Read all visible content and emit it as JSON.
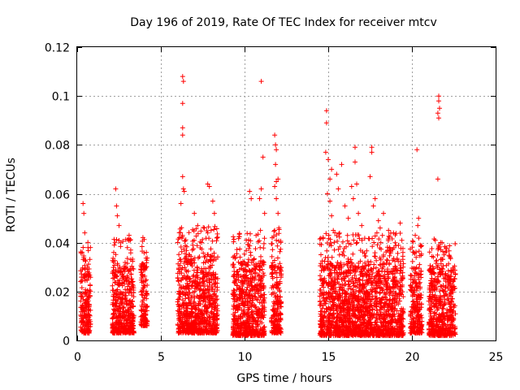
{
  "chart_data": {
    "type": "scatter",
    "title": "Day 196 of 2019, Rate Of TEC Index for receiver mtcv",
    "xlabel": "GPS time / hours",
    "ylabel": "ROTI / TECUs",
    "xlim": [
      0,
      25
    ],
    "ylim": [
      0,
      0.12
    ],
    "xticks": [
      0,
      5,
      10,
      15,
      20,
      25
    ],
    "xtick_labels": [
      "0",
      "5",
      "10",
      "15",
      "20",
      "25"
    ],
    "yticks": [
      0,
      0.02,
      0.04,
      0.06,
      0.08,
      0.1,
      0.12
    ],
    "ytick_labels": [
      "0",
      "0.02",
      "0.04",
      "0.06",
      "0.08",
      "0.1",
      "0.12"
    ],
    "grid": true,
    "marker": "+",
    "color": "#ff0000",
    "clusters": [
      {
        "x_range": [
          0.2,
          0.8
        ],
        "y_base": [
          0.003,
          0.03
        ],
        "spikes": [
          [
            0.35,
            0.056
          ],
          [
            0.4,
            0.052
          ],
          [
            0.45,
            0.044
          ],
          [
            0.3,
            0.036
          ]
        ]
      },
      {
        "x_range": [
          2.1,
          3.4
        ],
        "y_base": [
          0.003,
          0.03
        ],
        "spikes": [
          [
            2.3,
            0.062
          ],
          [
            2.35,
            0.055
          ],
          [
            2.4,
            0.051
          ],
          [
            2.5,
            0.047
          ],
          [
            2.6,
            0.04
          ],
          [
            3.1,
            0.043
          ],
          [
            3.2,
            0.037
          ],
          [
            3.0,
            0.038
          ]
        ]
      },
      {
        "x_range": [
          3.8,
          4.2
        ],
        "y_base": [
          0.006,
          0.032
        ],
        "spikes": [
          [
            4.0,
            0.03
          ]
        ]
      },
      {
        "x_range": [
          6.0,
          8.4
        ],
        "y_base": [
          0.003,
          0.035
        ],
        "spikes": [
          [
            6.3,
            0.108
          ],
          [
            6.35,
            0.106
          ],
          [
            6.3,
            0.097
          ],
          [
            6.3,
            0.087
          ],
          [
            6.3,
            0.084
          ],
          [
            6.3,
            0.067
          ],
          [
            6.35,
            0.062
          ],
          [
            6.4,
            0.061
          ],
          [
            6.2,
            0.056
          ],
          [
            7.0,
            0.052
          ],
          [
            7.2,
            0.047
          ],
          [
            7.8,
            0.064
          ],
          [
            7.9,
            0.063
          ],
          [
            8.1,
            0.057
          ],
          [
            8.2,
            0.052
          ],
          [
            7.6,
            0.046
          ],
          [
            8.0,
            0.045
          ]
        ]
      },
      {
        "x_range": [
          9.3,
          11.2
        ],
        "y_base": [
          0.002,
          0.032
        ],
        "spikes": [
          [
            10.3,
            0.061
          ],
          [
            10.4,
            0.058
          ],
          [
            10.1,
            0.041
          ],
          [
            11.0,
            0.106
          ],
          [
            11.1,
            0.075
          ],
          [
            11.0,
            0.062
          ],
          [
            10.9,
            0.058
          ],
          [
            11.2,
            0.052
          ],
          [
            10.95,
            0.045
          ]
        ]
      },
      {
        "x_range": [
          11.6,
          12.2
        ],
        "y_base": [
          0.003,
          0.035
        ],
        "spikes": [
          [
            11.8,
            0.084
          ],
          [
            11.85,
            0.08
          ],
          [
            11.9,
            0.078
          ],
          [
            11.85,
            0.072
          ],
          [
            12.0,
            0.066
          ],
          [
            11.9,
            0.065
          ],
          [
            11.8,
            0.063
          ],
          [
            11.9,
            0.058
          ],
          [
            12.0,
            0.052
          ],
          [
            11.8,
            0.045
          ],
          [
            11.9,
            0.041
          ],
          [
            12.05,
            0.046
          ]
        ]
      },
      {
        "x_range": [
          14.5,
          19.5
        ],
        "y_base": [
          0.002,
          0.032
        ],
        "spikes": [
          [
            14.9,
            0.094
          ],
          [
            14.9,
            0.089
          ],
          [
            14.85,
            0.077
          ],
          [
            15.0,
            0.074
          ],
          [
            15.2,
            0.07
          ],
          [
            15.1,
            0.066
          ],
          [
            14.95,
            0.06
          ],
          [
            15.1,
            0.057
          ],
          [
            15.2,
            0.051
          ],
          [
            15.3,
            0.045
          ],
          [
            15.4,
            0.044
          ],
          [
            15.5,
            0.068
          ],
          [
            15.6,
            0.062
          ],
          [
            15.8,
            0.072
          ],
          [
            16.0,
            0.055
          ],
          [
            16.2,
            0.05
          ],
          [
            16.4,
            0.063
          ],
          [
            16.6,
            0.079
          ],
          [
            16.6,
            0.073
          ],
          [
            16.7,
            0.064
          ],
          [
            16.5,
            0.058
          ],
          [
            16.8,
            0.052
          ],
          [
            17.0,
            0.047
          ],
          [
            17.6,
            0.079
          ],
          [
            17.6,
            0.077
          ],
          [
            17.5,
            0.067
          ],
          [
            17.8,
            0.058
          ],
          [
            17.7,
            0.055
          ],
          [
            18.0,
            0.049
          ],
          [
            18.1,
            0.046
          ],
          [
            18.3,
            0.052
          ],
          [
            18.6,
            0.045
          ],
          [
            18.9,
            0.044
          ],
          [
            19.0,
            0.04
          ],
          [
            19.3,
            0.048
          ],
          [
            19.4,
            0.041
          ]
        ]
      },
      {
        "x_range": [
          19.9,
          20.6
        ],
        "y_base": [
          0.003,
          0.03
        ],
        "spikes": [
          [
            20.3,
            0.078
          ],
          [
            20.4,
            0.05
          ],
          [
            20.35,
            0.047
          ],
          [
            20.2,
            0.043
          ],
          [
            20.5,
            0.039
          ]
        ]
      },
      {
        "x_range": [
          21.0,
          22.6
        ],
        "y_base": [
          0.002,
          0.03
        ],
        "spikes": [
          [
            21.6,
            0.1
          ],
          [
            21.6,
            0.098
          ],
          [
            21.65,
            0.095
          ],
          [
            21.55,
            0.093
          ],
          [
            21.6,
            0.091
          ],
          [
            21.55,
            0.066
          ],
          [
            21.4,
            0.041
          ],
          [
            21.6,
            0.039
          ],
          [
            21.8,
            0.04
          ],
          [
            22.0,
            0.036
          ]
        ]
      }
    ]
  }
}
